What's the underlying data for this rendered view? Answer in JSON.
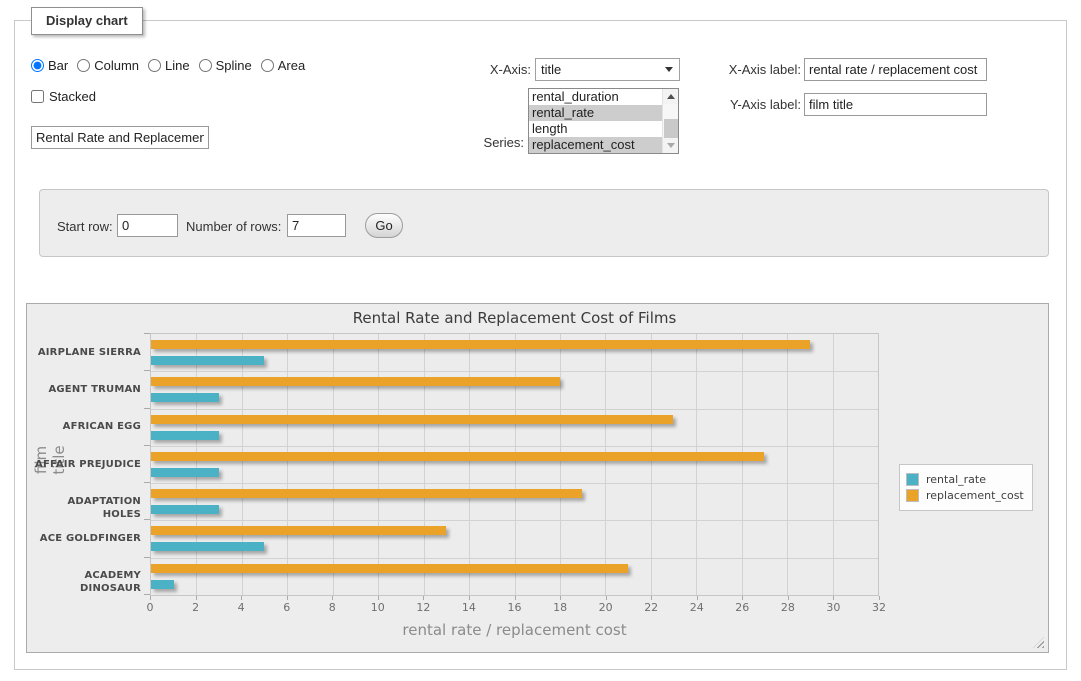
{
  "display_panel": {
    "legend_title": "Display chart",
    "chart_type_options": [
      {
        "label": "Bar",
        "checked": true
      },
      {
        "label": "Column",
        "checked": false
      },
      {
        "label": "Line",
        "checked": false
      },
      {
        "label": "Spline",
        "checked": false
      },
      {
        "label": "Area",
        "checked": false
      }
    ],
    "stacked": {
      "label": "Stacked",
      "checked": false
    },
    "chart_title_input": {
      "value": "Rental Rate and Replacement Cost of Films"
    },
    "x_axis_select": {
      "label": "X-Axis:",
      "selected_value": "title"
    },
    "series_listbox": {
      "label": "Series:",
      "options": [
        {
          "label": "rental_duration",
          "selected": false
        },
        {
          "label": "rental_rate",
          "selected": true
        },
        {
          "label": "length",
          "selected": false
        },
        {
          "label": "replacement_cost",
          "selected": true
        }
      ]
    },
    "x_axis_label_input": {
      "label": "X-Axis label:",
      "value": "rental rate / replacement cost"
    },
    "y_axis_label_input": {
      "label": "Y-Axis label:",
      "value": "film title"
    }
  },
  "rows_panel": {
    "start_row": {
      "label": "Start row:",
      "value": "0"
    },
    "number_of_rows": {
      "label": "Number of rows:",
      "value": "7"
    },
    "go_button_label": "Go"
  },
  "chart_data": {
    "type": "bar",
    "orientation": "horizontal",
    "title": "Rental Rate and Replacement Cost of Films",
    "xlabel": "rental rate / replacement cost",
    "ylabel": "film title",
    "categories": [
      "AIRPLANE SIERRA",
      "AGENT TRUMAN",
      "AFRICAN EGG",
      "AFFAIR PREJUDICE",
      "ADAPTATION HOLES",
      "ACE GOLDFINGER",
      "ACADEMY DINOSAUR"
    ],
    "series": [
      {
        "name": "rental_rate",
        "color": "#4bb2c5",
        "values": [
          4.99,
          2.99,
          2.99,
          2.99,
          2.99,
          4.99,
          0.99
        ]
      },
      {
        "name": "replacement_cost",
        "color": "#EAA228",
        "values": [
          28.99,
          17.99,
          22.99,
          26.99,
          18.99,
          12.99,
          20.99
        ]
      }
    ],
    "bar_order_in_group": [
      "replacement_cost",
      "rental_rate"
    ],
    "xlim": [
      0,
      32
    ],
    "x_tick_step": 2,
    "grid": true,
    "legend_position": "outside-right"
  }
}
